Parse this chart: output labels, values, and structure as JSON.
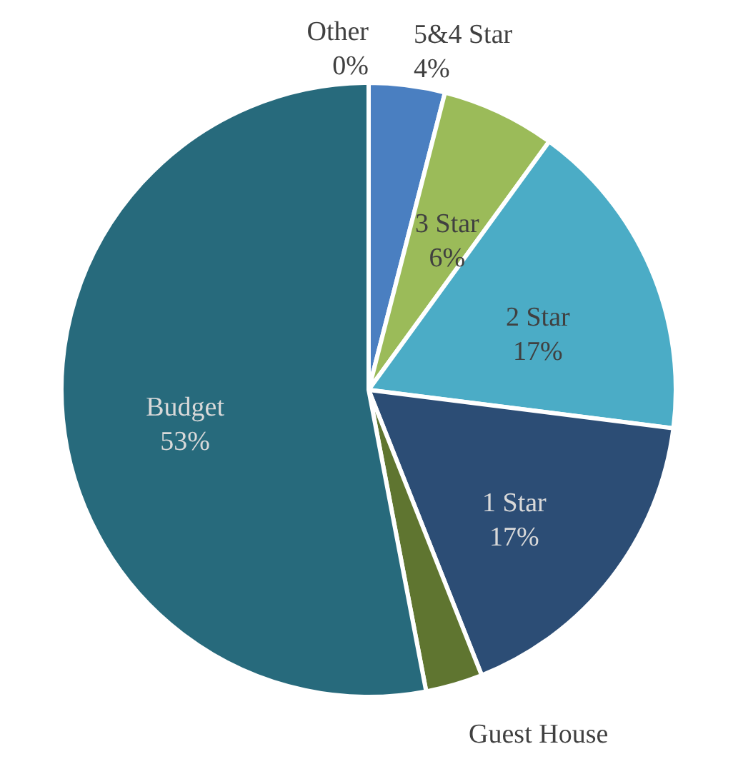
{
  "chart_data": {
    "type": "pie",
    "categories": [
      "5&4 Star",
      "3 Star",
      "2 Star",
      "1 Star",
      "Guest House",
      "Budget",
      "Other"
    ],
    "values": [
      4,
      6,
      17,
      17,
      3,
      53,
      0
    ],
    "value_labels": [
      "4%",
      "6%",
      "17%",
      "17%",
      null,
      "53%",
      "0%"
    ],
    "colors": [
      "#4a7fc1",
      "#9bbb59",
      "#4bacc6",
      "#2c4d75",
      "#5f7530",
      "#276a7c",
      "#a0a0a0"
    ],
    "legend": false
  }
}
